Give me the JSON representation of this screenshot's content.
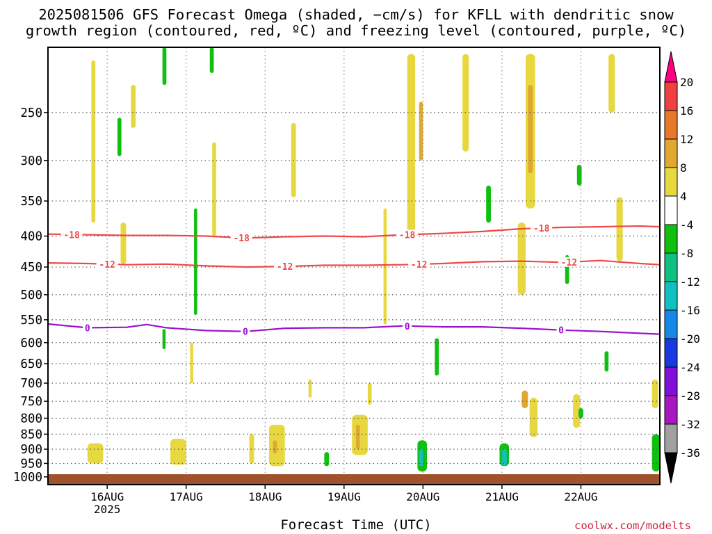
{
  "title": {
    "line1": "2025081506 GFS Forecast Omega (shaded, −cm/s) for KFLL with dendritic snow",
    "line2": "growth region (contoured, red, ºC) and freezing level (contoured, purple, ºC)"
  },
  "xlabel": "Forecast Time (UTC)",
  "credit": "coolwx.com/modelts",
  "chart_data": {
    "type": "heatmap",
    "title": "2025081506 GFS Forecast Omega (shaded, −cm/s) for KFLL with dendritic snow growth region (contoured, red, ºC) and freezing level (contoured, purple, ºC)",
    "xlabel": "Forecast Time (UTC)",
    "ylabel": "",
    "x_range": [
      "2025-08-15T06",
      "2025-08-22T18"
    ],
    "y_range": [
      1030,
      195
    ],
    "y_scale": "pressure (hPa), inverted",
    "x_ticks": [
      {
        "t": 0.75,
        "label": "16AUG",
        "sub": "2025"
      },
      {
        "t": 1.75,
        "label": "17AUG"
      },
      {
        "t": 2.75,
        "label": "18AUG"
      },
      {
        "t": 3.75,
        "label": "19AUG"
      },
      {
        "t": 4.75,
        "label": "20AUG"
      },
      {
        "t": 5.75,
        "label": "21AUG"
      },
      {
        "t": 6.75,
        "label": "22AUG"
      }
    ],
    "y_ticks": [
      250,
      300,
      350,
      400,
      450,
      500,
      550,
      600,
      650,
      700,
      750,
      800,
      850,
      900,
      950,
      1000
    ],
    "grid": true,
    "colorbar": {
      "levels": [
        "20",
        "16",
        "12",
        "8",
        "4",
        "-4",
        "-8",
        "-12",
        "-16",
        "-20",
        "-24",
        "-28",
        "-32",
        "-36"
      ],
      "colors": [
        "#ff0080",
        "#f04040",
        "#e8782a",
        "#e0a830",
        "#e8d840",
        "#ffffff",
        "#10c010",
        "#10c080",
        "#10c0c0",
        "#1888e8",
        "#1838e0",
        "#8010d8",
        "#a818c0",
        "#a0a0a0",
        "#000000"
      ]
    },
    "contours": [
      {
        "name": "-18",
        "color": "#f04848",
        "points": [
          [
            0,
            397
          ],
          [
            0.5,
            398
          ],
          [
            1,
            399
          ],
          [
            1.5,
            399
          ],
          [
            2,
            400
          ],
          [
            2.5,
            403
          ],
          [
            3,
            401
          ],
          [
            3.5,
            400
          ],
          [
            4,
            401
          ],
          [
            4.5,
            398
          ],
          [
            5,
            396
          ],
          [
            5.5,
            393
          ],
          [
            6,
            389
          ],
          [
            6.5,
            387
          ],
          [
            7,
            386
          ],
          [
            7.5,
            385
          ],
          [
            7.75,
            386
          ]
        ],
        "labels": [
          0.3,
          2.45,
          4.55,
          6.25
        ]
      },
      {
        "name": "-12",
        "color": "#f04848",
        "points": [
          [
            0,
            443
          ],
          [
            0.5,
            444
          ],
          [
            1,
            446
          ],
          [
            1.5,
            445
          ],
          [
            2,
            448
          ],
          [
            2.5,
            450
          ],
          [
            3,
            449
          ],
          [
            3.5,
            447
          ],
          [
            4,
            447
          ],
          [
            4.5,
            446
          ],
          [
            5,
            444
          ],
          [
            5.5,
            441
          ],
          [
            6,
            440
          ],
          [
            6.5,
            442
          ],
          [
            7,
            439
          ],
          [
            7.5,
            444
          ],
          [
            7.75,
            446
          ]
        ],
        "labels": [
          0.75,
          3.0,
          4.7,
          6.6
        ]
      },
      {
        "name": "0",
        "color": "#9b10d0",
        "points": [
          [
            0,
            559
          ],
          [
            0.5,
            567
          ],
          [
            1,
            566
          ],
          [
            1.25,
            560
          ],
          [
            1.5,
            567
          ],
          [
            2,
            573
          ],
          [
            2.5,
            575
          ],
          [
            3,
            568
          ],
          [
            3.5,
            567
          ],
          [
            4,
            567
          ],
          [
            4.5,
            563
          ],
          [
            5,
            565
          ],
          [
            5.5,
            565
          ],
          [
            6,
            568
          ],
          [
            6.5,
            572
          ],
          [
            7,
            575
          ],
          [
            7.5,
            579
          ],
          [
            7.75,
            581
          ]
        ],
        "labels": [
          0.5,
          2.5,
          4.55,
          6.5
        ]
      }
    ],
    "omega_cells": [
      {
        "x": 0.55,
        "w": 0.05,
        "p": [
          205,
          380
        ],
        "v": 4
      },
      {
        "x": 0.88,
        "w": 0.05,
        "p": [
          255,
          295
        ],
        "v": -6
      },
      {
        "x": 1.05,
        "w": 0.06,
        "p": [
          225,
          265
        ],
        "v": 4
      },
      {
        "x": 0.92,
        "w": 0.07,
        "p": [
          380,
          445
        ],
        "v": 4
      },
      {
        "x": 0.5,
        "w": 0.2,
        "p": [
          880,
          950
        ],
        "v": 4
      },
      {
        "x": 1.45,
        "w": 0.05,
        "p": [
          180,
          225
        ],
        "v": -6
      },
      {
        "x": 1.45,
        "w": 0.04,
        "p": [
          570,
          615
        ],
        "v": -6
      },
      {
        "x": 1.55,
        "w": 0.2,
        "p": [
          865,
          955
        ],
        "v": 4
      },
      {
        "x": 1.85,
        "w": 0.04,
        "p": [
          360,
          540
        ],
        "v": -6
      },
      {
        "x": 1.8,
        "w": 0.04,
        "p": [
          600,
          700
        ],
        "v": 4
      },
      {
        "x": 2.05,
        "w": 0.05,
        "p": [
          180,
          215
        ],
        "v": -6
      },
      {
        "x": 2.08,
        "w": 0.05,
        "p": [
          280,
          400
        ],
        "v": 4
      },
      {
        "x": 2.55,
        "w": 0.06,
        "p": [
          850,
          950
        ],
        "v": 4
      },
      {
        "x": 2.8,
        "w": 0.2,
        "p": [
          820,
          960
        ],
        "v": 4
      },
      {
        "x": 2.85,
        "w": 0.05,
        "p": [
          870,
          915
        ],
        "v": 8
      },
      {
        "x": 3.08,
        "w": 0.06,
        "p": [
          260,
          345
        ],
        "v": 4
      },
      {
        "x": 3.3,
        "w": 0.04,
        "p": [
          690,
          740
        ],
        "v": 4
      },
      {
        "x": 4.05,
        "w": 0.05,
        "p": [
          700,
          760
        ],
        "v": 4
      },
      {
        "x": 3.5,
        "w": 0.06,
        "p": [
          910,
          960
        ],
        "v": -6
      },
      {
        "x": 3.85,
        "w": 0.2,
        "p": [
          790,
          920
        ],
        "v": 4
      },
      {
        "x": 3.9,
        "w": 0.05,
        "p": [
          820,
          900
        ],
        "v": 8
      },
      {
        "x": 4.25,
        "w": 0.04,
        "p": [
          360,
          560
        ],
        "v": 4
      },
      {
        "x": 4.55,
        "w": 0.1,
        "p": [
          200,
          400
        ],
        "v": 4
      },
      {
        "x": 4.7,
        "w": 0.05,
        "p": [
          240,
          300
        ],
        "v": 8
      },
      {
        "x": 4.68,
        "w": 0.12,
        "p": [
          870,
          980
        ],
        "v": -6
      },
      {
        "x": 4.7,
        "w": 0.05,
        "p": [
          900,
          960
        ],
        "v": -14
      },
      {
        "x": 4.9,
        "w": 0.05,
        "p": [
          590,
          680
        ],
        "v": -6
      },
      {
        "x": 5.25,
        "w": 0.08,
        "p": [
          200,
          290
        ],
        "v": 4
      },
      {
        "x": 5.55,
        "w": 0.06,
        "p": [
          330,
          380
        ],
        "v": -6
      },
      {
        "x": 5.72,
        "w": 0.12,
        "p": [
          880,
          960
        ],
        "v": -6
      },
      {
        "x": 5.75,
        "w": 0.06,
        "p": [
          900,
          960
        ],
        "v": -14
      },
      {
        "x": 5.95,
        "w": 0.1,
        "p": [
          380,
          500
        ],
        "v": 4
      },
      {
        "x": 6.0,
        "w": 0.08,
        "p": [
          720,
          770
        ],
        "v": 8
      },
      {
        "x": 6.05,
        "w": 0.12,
        "p": [
          200,
          360
        ],
        "v": 4
      },
      {
        "x": 6.08,
        "w": 0.06,
        "p": [
          225,
          315
        ],
        "v": 8
      },
      {
        "x": 6.1,
        "w": 0.1,
        "p": [
          740,
          860
        ],
        "v": 4
      },
      {
        "x": 6.55,
        "w": 0.05,
        "p": [
          430,
          480
        ],
        "v": -6
      },
      {
        "x": 6.65,
        "w": 0.09,
        "p": [
          730,
          830
        ],
        "v": 4
      },
      {
        "x": 6.7,
        "w": 0.06,
        "p": [
          305,
          330
        ],
        "v": -6
      },
      {
        "x": 6.72,
        "w": 0.06,
        "p": [
          770,
          800
        ],
        "v": -6
      },
      {
        "x": 7.05,
        "w": 0.05,
        "p": [
          620,
          670
        ],
        "v": -6
      },
      {
        "x": 7.1,
        "w": 0.08,
        "p": [
          200,
          250
        ],
        "v": 4
      },
      {
        "x": 7.2,
        "w": 0.08,
        "p": [
          345,
          440
        ],
        "v": 4
      },
      {
        "x": 7.65,
        "w": 0.08,
        "p": [
          690,
          770
        ],
        "v": 4
      },
      {
        "x": 7.65,
        "w": 0.1,
        "p": [
          850,
          980
        ],
        "v": -6
      }
    ]
  }
}
